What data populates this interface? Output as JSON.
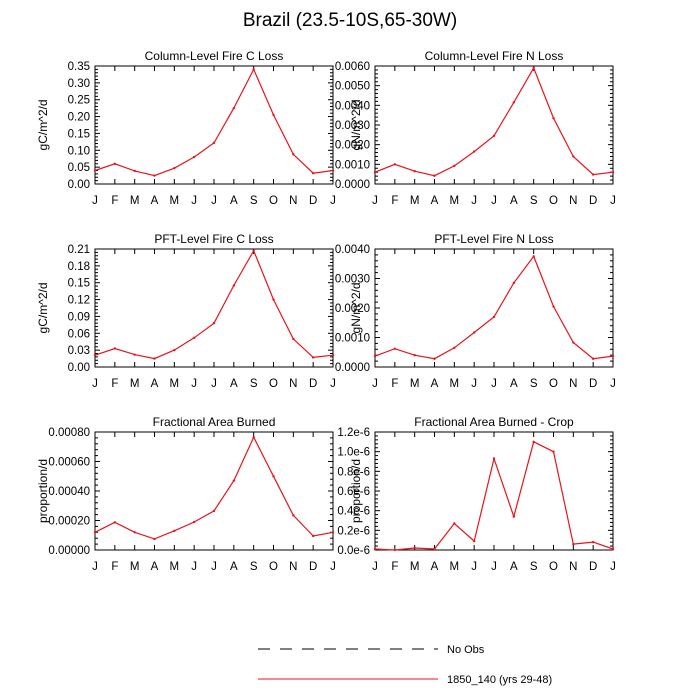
{
  "figure": {
    "title": "Brazil (23.5-10S,65-30W)",
    "line_color": "#e8141b"
  },
  "legend": {
    "entries": [
      {
        "label": "No Obs",
        "style": "dashed",
        "color": "#000000"
      },
      {
        "label": "1850_140 (yrs 29-48)",
        "style": "solid",
        "color": "#e8141b"
      }
    ]
  },
  "chart_data": [
    {
      "type": "line",
      "title": "Column-Level Fire C Loss",
      "ylabel": "gC/m^2/d",
      "ylim": [
        0,
        0.35
      ],
      "yticks": [
        "0.00",
        "0.05",
        "0.10",
        "0.15",
        "0.20",
        "0.25",
        "0.30",
        "0.35"
      ],
      "categories": [
        "J",
        "F",
        "M",
        "A",
        "M",
        "J",
        "J",
        "A",
        "S",
        "O",
        "N",
        "D",
        "J"
      ],
      "values": [
        0.04,
        0.06,
        0.039,
        0.025,
        0.047,
        0.08,
        0.122,
        0.225,
        0.34,
        0.205,
        0.088,
        0.032,
        0.04
      ]
    },
    {
      "type": "line",
      "title": "Column-Level Fire N Loss",
      "ylabel": "gN/m^2/d",
      "ylim": [
        0,
        0.006
      ],
      "yticks": [
        "0.0000",
        "0.0010",
        "0.0020",
        "0.0030",
        "0.0040",
        "0.0050",
        "0.0060"
      ],
      "categories": [
        "J",
        "F",
        "M",
        "A",
        "M",
        "J",
        "J",
        "A",
        "S",
        "O",
        "N",
        "D",
        "J"
      ],
      "values": [
        0.0006,
        0.001,
        0.00065,
        0.00042,
        0.00092,
        0.00165,
        0.00245,
        0.00415,
        0.0059,
        0.00335,
        0.0014,
        0.00048,
        0.0006
      ]
    },
    {
      "type": "line",
      "title": "PFT-Level Fire C Loss",
      "ylabel": "gC/m^2/d",
      "ylim": [
        0,
        0.21
      ],
      "yticks": [
        "0.00",
        "0.03",
        "0.06",
        "0.09",
        "0.12",
        "0.15",
        "0.18",
        "0.21"
      ],
      "categories": [
        "J",
        "F",
        "M",
        "A",
        "M",
        "J",
        "J",
        "A",
        "S",
        "O",
        "N",
        "D",
        "J"
      ],
      "values": [
        0.021,
        0.033,
        0.022,
        0.015,
        0.03,
        0.052,
        0.078,
        0.145,
        0.207,
        0.12,
        0.05,
        0.017,
        0.021
      ]
    },
    {
      "type": "line",
      "title": "PFT-Level Fire N Loss",
      "ylabel": "gN/m^2/d",
      "ylim": [
        0,
        0.004
      ],
      "yticks": [
        "0.0000",
        "0.0010",
        "0.0020",
        "0.0030",
        "0.0040"
      ],
      "categories": [
        "J",
        "F",
        "M",
        "A",
        "M",
        "J",
        "J",
        "A",
        "S",
        "O",
        "N",
        "D",
        "J"
      ],
      "values": [
        0.00037,
        0.00062,
        0.0004,
        0.00028,
        0.00065,
        0.00117,
        0.0017,
        0.00285,
        0.00375,
        0.00205,
        0.00083,
        0.00028,
        0.00037
      ]
    },
    {
      "type": "line",
      "title": "Fractional Area Burned",
      "ylabel": "proportion/d",
      "ylim": [
        0,
        0.0008
      ],
      "yticks": [
        "0.00000",
        "0.00020",
        "0.00040",
        "0.00060",
        "0.00080"
      ],
      "categories": [
        "J",
        "F",
        "M",
        "A",
        "M",
        "J",
        "J",
        "A",
        "S",
        "O",
        "N",
        "D",
        "J"
      ],
      "values": [
        0.00012,
        0.000188,
        0.00012,
        7.5e-05,
        0.00013,
        0.00019,
        0.000265,
        0.00047,
        0.000765,
        0.0005,
        0.000235,
        9.5e-05,
        0.00012
      ]
    },
    {
      "type": "line",
      "title": "Fractional Area Burned - Crop",
      "ylabel": "proportion/d",
      "ylim": [
        0,
        1.2e-06
      ],
      "yticks": [
        "0.0e-6",
        "0.2e-6",
        "0.4e-6",
        "0.6e-6",
        "0.8e-6",
        "1.0e-6",
        "1.2e-6"
      ],
      "categories": [
        "J",
        "F",
        "M",
        "A",
        "M",
        "J",
        "J",
        "A",
        "S",
        "O",
        "N",
        "D",
        "J"
      ],
      "values": [
        1e-08,
        0.0,
        2e-08,
        1e-08,
        2.7e-07,
        9e-08,
        9.3e-07,
        3.4e-07,
        1.1e-06,
        1e-06,
        6e-08,
        8e-08,
        1e-08
      ]
    }
  ]
}
